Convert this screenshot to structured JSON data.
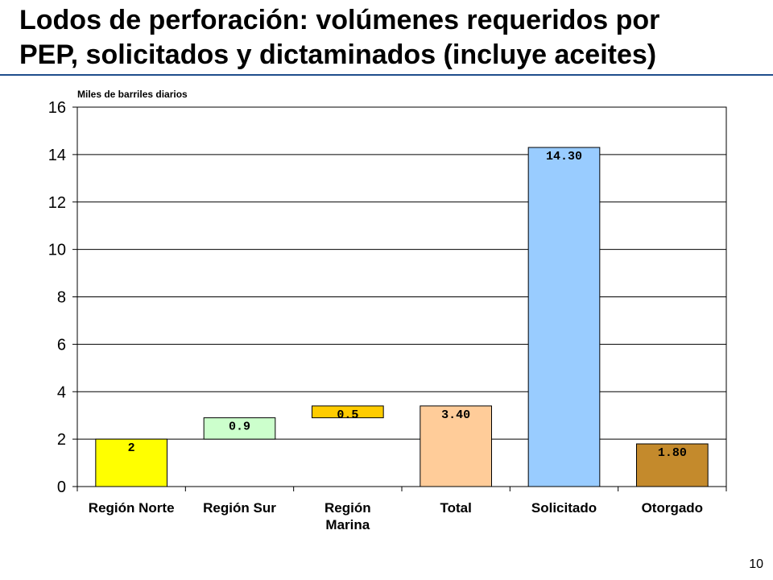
{
  "slide": {
    "title_line1": "Lodos de perforación: volúmenes requeridos por",
    "title_line2": "PEP, solicitados y dictaminados (incluye aceites)",
    "page_number": "10"
  },
  "chart_data": {
    "type": "bar",
    "subtype": "waterfall",
    "title": "",
    "ylabel": "Miles de barriles diarios",
    "xlabel": "",
    "ylim": [
      0,
      16
    ],
    "yticks": [
      0,
      2,
      4,
      6,
      8,
      10,
      12,
      14,
      16
    ],
    "grid": true,
    "legend": "none",
    "categories": [
      [
        "Región Norte"
      ],
      [
        "Región Sur"
      ],
      [
        "Región",
        "Marina"
      ],
      [
        "Total"
      ],
      [
        "Solicitado"
      ],
      [
        "Otorgado"
      ]
    ],
    "bars": [
      {
        "base": 0,
        "value": 2,
        "label": "2",
        "color": "#ffff00"
      },
      {
        "base": 2,
        "value": 0.9,
        "label": "0.9",
        "color": "#ccffcc"
      },
      {
        "base": 2.9,
        "value": 0.5,
        "label": "0.5",
        "color": "#ffcc00"
      },
      {
        "base": 0,
        "value": 3.4,
        "label": "3.40",
        "color": "#ffcc99"
      },
      {
        "base": 0,
        "value": 14.3,
        "label": "14.30",
        "color": "#99ccff"
      },
      {
        "base": 0,
        "value": 1.8,
        "label": "1.80",
        "color": "#c48a2c"
      }
    ]
  }
}
